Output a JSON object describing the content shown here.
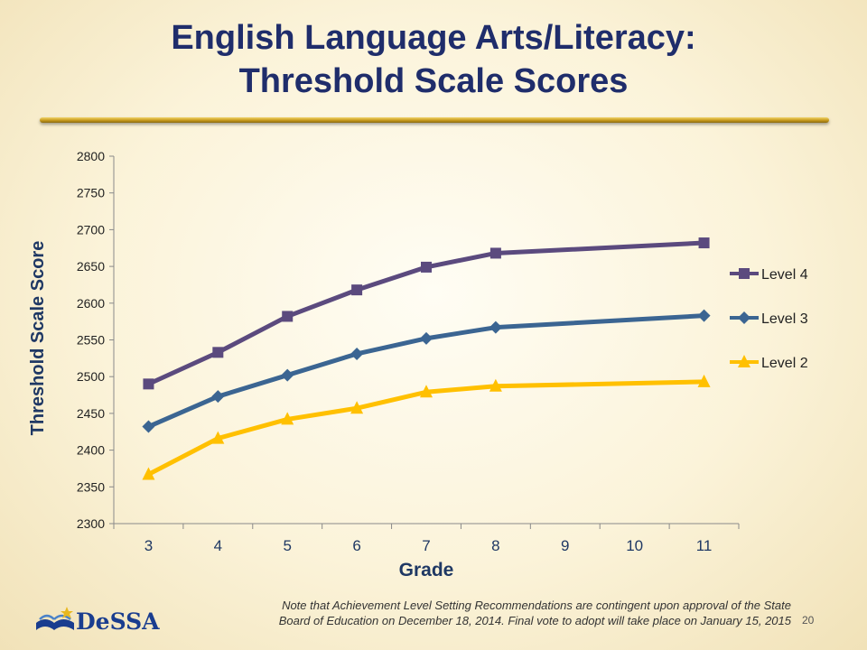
{
  "slide": {
    "title_line1": "English Language Arts/Literacy:",
    "title_line2": "Threshold Scale Scores",
    "note_line1": "Note that Achievement Level Setting Recommendations are contingent upon approval of the State",
    "note_line2": "Board of Education on December 18, 2014. Final vote to adopt will take place on January 15, 2015",
    "page_number": "20",
    "logo_text": "DeSSA"
  },
  "colors": {
    "title": "#1f2d6b",
    "axis_label": "#1f3864",
    "level4": "#5b4a7e",
    "level3": "#3b6592",
    "level2": "#ffc000"
  },
  "chart_data": {
    "type": "line",
    "title": "",
    "xlabel": "Grade",
    "ylabel": "Threshold Scale Score",
    "categories": [
      "3",
      "4",
      "5",
      "6",
      "7",
      "8",
      "9",
      "10",
      "11"
    ],
    "ylim": [
      2300,
      2800
    ],
    "yticks": [
      2300,
      2350,
      2400,
      2450,
      2500,
      2550,
      2600,
      2650,
      2700,
      2750,
      2800
    ],
    "grid": false,
    "legend_position": "right",
    "series": [
      {
        "name": "Level 4",
        "marker": "square",
        "color": "#5b4a7e",
        "values": [
          2490,
          2533,
          2582,
          2618,
          2649,
          2668,
          null,
          null,
          2682
        ]
      },
      {
        "name": "Level 3",
        "marker": "diamond",
        "color": "#3b6592",
        "values": [
          2432,
          2473,
          2502,
          2531,
          2552,
          2567,
          null,
          null,
          2583
        ]
      },
      {
        "name": "Level 2",
        "marker": "triangle",
        "color": "#ffc000",
        "values": [
          2367,
          2416,
          2442,
          2457,
          2479,
          2487,
          null,
          null,
          2493
        ]
      }
    ]
  }
}
